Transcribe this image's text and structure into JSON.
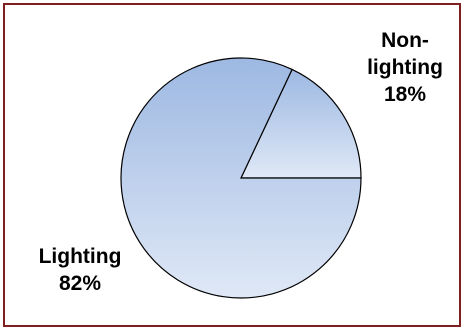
{
  "chart_data": {
    "type": "pie",
    "categories": [
      "Non-lighting",
      "Lighting"
    ],
    "values": [
      18,
      82
    ],
    "unit": "%",
    "title": "",
    "legend": "none",
    "labels": [
      {
        "lines": [
          "Non-",
          "lighting",
          "18%"
        ]
      },
      {
        "lines": [
          "Lighting",
          "82%"
        ]
      }
    ],
    "colors": {
      "fill_top": "#9db8e2",
      "fill_bottom": "#dfe8f6",
      "stroke": "#000000",
      "frame": "#7f1f1f"
    }
  }
}
